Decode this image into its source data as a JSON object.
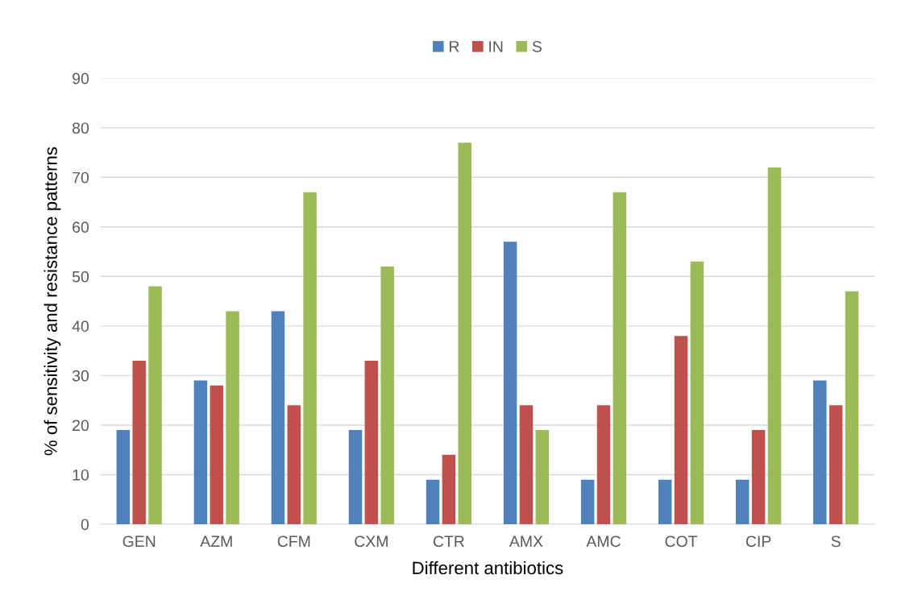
{
  "chart_data": {
    "type": "bar",
    "xlabel": "Different antibiotics",
    "ylabel": "% of sensitivity and resistance patterns",
    "categories": [
      "GEN",
      "AZM",
      "CFM",
      "CXM",
      "CTR",
      "AMX",
      "AMC",
      "COT",
      "CIP",
      "S"
    ],
    "series": [
      {
        "name": "R",
        "color": "#4f81bd",
        "values": [
          19,
          29,
          43,
          19,
          9,
          57,
          9,
          9,
          9,
          29
        ]
      },
      {
        "name": "IN",
        "color": "#c0504d",
        "values": [
          33,
          28,
          24,
          33,
          14,
          24,
          24,
          38,
          19,
          24
        ]
      },
      {
        "name": "S",
        "color": "#9bbb59",
        "values": [
          48,
          43,
          67,
          52,
          77,
          19,
          67,
          53,
          72,
          47
        ]
      }
    ],
    "ylim": [
      0,
      90
    ],
    "yticks": [
      0,
      10,
      20,
      30,
      40,
      50,
      60,
      70,
      80,
      90
    ],
    "grid": "y",
    "legend": "top"
  }
}
